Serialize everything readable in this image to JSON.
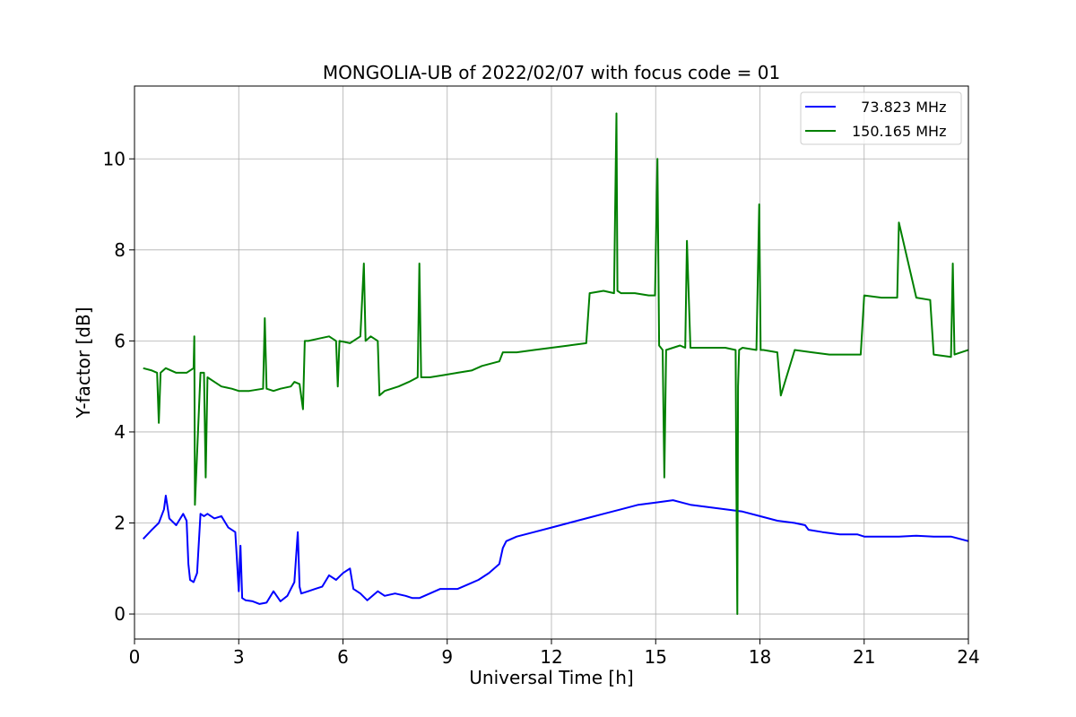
{
  "chart_data": {
    "type": "line",
    "title": "MONGOLIA-UB of 2022/02/07 with focus code = 01",
    "xlabel": "Universal Time [h]",
    "ylabel": "Y-factor [dB]",
    "xlim": [
      0,
      24
    ],
    "ylim": [
      -0.55,
      11.6
    ],
    "xticks": [
      0,
      3,
      6,
      9,
      12,
      15,
      18,
      21,
      24
    ],
    "yticks": [
      0,
      2,
      4,
      6,
      8,
      10
    ],
    "grid": true,
    "legend_position": "top-right",
    "series": [
      {
        "name": "  73.823 MHz",
        "color": "#0000ff",
        "x": [
          0.25,
          0.5,
          0.7,
          0.85,
          0.9,
          1.0,
          1.2,
          1.4,
          1.5,
          1.55,
          1.6,
          1.7,
          1.8,
          1.9,
          2.0,
          2.1,
          2.3,
          2.5,
          2.7,
          2.9,
          3.0,
          3.05,
          3.1,
          3.2,
          3.4,
          3.6,
          3.8,
          4.0,
          4.2,
          4.4,
          4.5,
          4.6,
          4.7,
          4.75,
          4.8,
          5.0,
          5.2,
          5.4,
          5.6,
          5.8,
          6.0,
          6.2,
          6.3,
          6.5,
          6.7,
          7.0,
          7.2,
          7.5,
          7.8,
          8.0,
          8.2,
          8.5,
          8.8,
          9.0,
          9.3,
          9.6,
          9.9,
          10.2,
          10.5,
          10.6,
          10.7,
          11.0,
          11.5,
          12.0,
          12.5,
          13.0,
          13.5,
          14.0,
          14.5,
          15.0,
          15.5,
          16.0,
          16.5,
          17.0,
          17.5,
          18.0,
          18.5,
          19.0,
          19.3,
          19.4,
          19.8,
          20.3,
          20.8,
          21.0,
          21.5,
          22.0,
          22.5,
          23.0,
          23.5,
          24.0
        ],
        "values": [
          1.65,
          1.85,
          2.0,
          2.3,
          2.6,
          2.1,
          1.95,
          2.2,
          2.05,
          1.1,
          0.75,
          0.7,
          0.9,
          2.2,
          2.15,
          2.2,
          2.1,
          2.15,
          1.9,
          1.8,
          0.5,
          1.5,
          0.35,
          0.3,
          0.28,
          0.22,
          0.25,
          0.5,
          0.28,
          0.4,
          0.55,
          0.7,
          1.8,
          0.6,
          0.45,
          0.5,
          0.55,
          0.6,
          0.85,
          0.75,
          0.9,
          1.0,
          0.55,
          0.45,
          0.3,
          0.5,
          0.4,
          0.45,
          0.4,
          0.35,
          0.35,
          0.45,
          0.55,
          0.55,
          0.55,
          0.65,
          0.75,
          0.9,
          1.1,
          1.45,
          1.6,
          1.7,
          1.8,
          1.9,
          2.0,
          2.1,
          2.2,
          2.3,
          2.4,
          2.45,
          2.5,
          2.4,
          2.35,
          2.3,
          2.25,
          2.15,
          2.05,
          2.0,
          1.95,
          1.85,
          1.8,
          1.75,
          1.75,
          1.7,
          1.7,
          1.7,
          1.72,
          1.7,
          1.7,
          1.6
        ]
      },
      {
        "name": "150.165 MHz",
        "color": "#008000",
        "x": [
          0.25,
          0.5,
          0.65,
          0.7,
          0.75,
          0.9,
          1.2,
          1.5,
          1.7,
          1.72,
          1.74,
          1.9,
          2.0,
          2.05,
          2.1,
          2.3,
          2.5,
          2.8,
          3.0,
          3.3,
          3.7,
          3.75,
          3.8,
          4.0,
          4.2,
          4.5,
          4.6,
          4.75,
          4.85,
          4.9,
          5.0,
          5.3,
          5.6,
          5.8,
          5.85,
          5.9,
          6.2,
          6.5,
          6.6,
          6.65,
          6.8,
          7.0,
          7.05,
          7.2,
          7.6,
          7.9,
          8.15,
          8.2,
          8.25,
          8.5,
          8.9,
          9.3,
          9.7,
          10.0,
          10.5,
          10.6,
          11.0,
          11.5,
          12.0,
          12.5,
          13.0,
          13.1,
          13.5,
          13.8,
          13.87,
          13.9,
          14.0,
          14.4,
          14.8,
          14.98,
          15.05,
          15.1,
          15.2,
          15.25,
          15.3,
          15.7,
          15.85,
          15.9,
          16.0,
          16.5,
          17.0,
          17.3,
          17.32,
          17.35,
          17.37,
          17.4,
          17.5,
          17.9,
          17.98,
          18.02,
          18.1,
          18.5,
          18.6,
          19.0,
          19.5,
          20.0,
          20.5,
          20.9,
          21.0,
          21.5,
          21.95,
          22.0,
          22.5,
          22.9,
          23.0,
          23.5,
          23.55,
          23.6,
          24.0
        ],
        "values": [
          5.4,
          5.35,
          5.3,
          4.2,
          5.3,
          5.4,
          5.3,
          5.3,
          5.4,
          6.1,
          2.4,
          5.3,
          5.3,
          3.0,
          5.2,
          5.1,
          5.0,
          4.95,
          4.9,
          4.9,
          4.95,
          6.5,
          4.95,
          4.9,
          4.95,
          5.0,
          5.1,
          5.05,
          4.5,
          6.0,
          6.0,
          6.05,
          6.1,
          6.0,
          5.0,
          6.0,
          5.95,
          6.1,
          7.7,
          6.0,
          6.1,
          6.0,
          4.8,
          4.9,
          5.0,
          5.1,
          5.2,
          7.7,
          5.2,
          5.2,
          5.25,
          5.3,
          5.35,
          5.45,
          5.55,
          5.75,
          5.75,
          5.8,
          5.85,
          5.9,
          5.95,
          7.05,
          7.1,
          7.05,
          11.0,
          7.1,
          7.05,
          7.05,
          7.0,
          7.0,
          10.0,
          5.9,
          5.8,
          3.0,
          5.8,
          5.9,
          5.85,
          8.2,
          5.85,
          5.85,
          5.85,
          5.8,
          3.2,
          0.0,
          5.0,
          5.8,
          5.85,
          5.8,
          9.0,
          5.8,
          5.8,
          5.75,
          4.8,
          5.8,
          5.75,
          5.7,
          5.7,
          5.7,
          7.0,
          6.95,
          6.95,
          8.6,
          6.95,
          6.9,
          5.7,
          5.65,
          7.7,
          5.7,
          5.8
        ]
      }
    ]
  }
}
